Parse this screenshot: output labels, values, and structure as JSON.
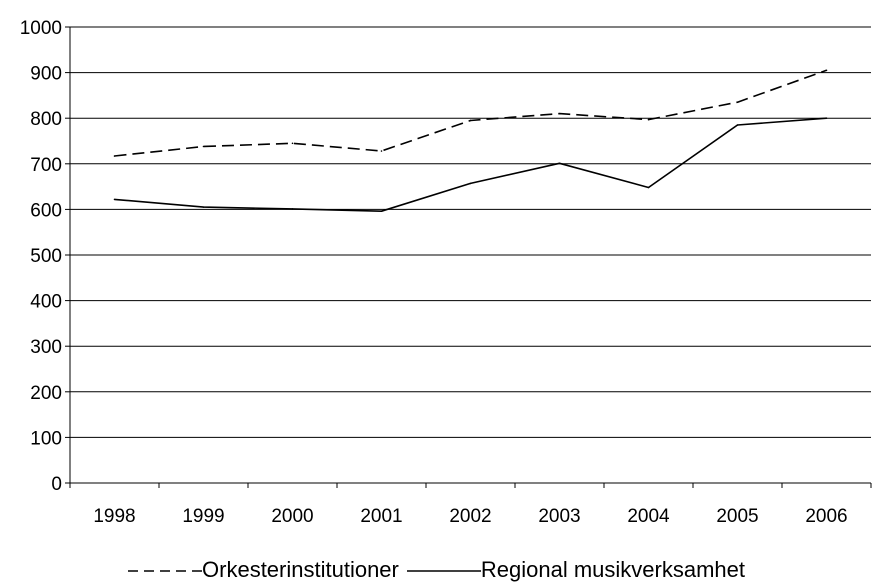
{
  "chart_data": {
    "type": "line",
    "categories": [
      "1998",
      "1999",
      "2000",
      "2001",
      "2002",
      "2003",
      "2004",
      "2005",
      "2006"
    ],
    "series": [
      {
        "name": "Orkesterinstitutioner",
        "style": "dashed",
        "values": [
          717,
          738,
          745,
          728,
          795,
          810,
          797,
          835,
          905
        ]
      },
      {
        "name": "Regional musikverksamhet",
        "style": "solid",
        "values": [
          622,
          605,
          601,
          596,
          657,
          701,
          648,
          785,
          800
        ]
      }
    ],
    "yticks": [
      "0",
      "100",
      "200",
      "300",
      "400",
      "500",
      "600",
      "700",
      "800",
      "900",
      "1000"
    ],
    "ylim": [
      0,
      1000
    ],
    "grid": "horizontal",
    "legend_position": "bottom",
    "line_color": "#000000"
  }
}
